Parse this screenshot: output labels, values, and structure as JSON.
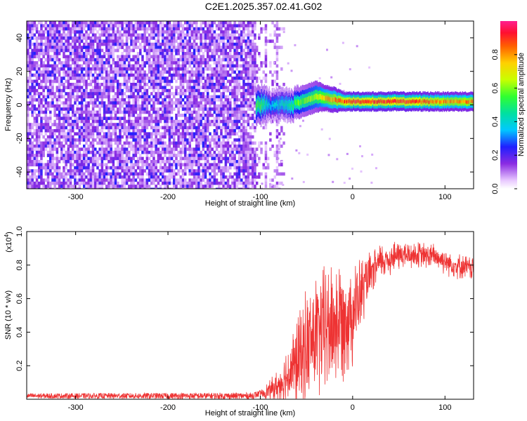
{
  "title": "C2E1.2025.357.02.41.G02",
  "chart_data": [
    {
      "type": "heatmap",
      "name": "spectrogram",
      "xlabel": "Height of straight line (km)",
      "ylabel": "Frequency (Hz)",
      "xlim": [
        -353,
        131
      ],
      "ylim": [
        -50,
        50
      ],
      "xticks": [
        -300,
        -200,
        -100,
        0,
        100
      ],
      "yticks": [
        -40,
        -20,
        0,
        20,
        40
      ],
      "noise_region_x": [
        -353,
        -105
      ],
      "noise_sparse_x": [
        -105,
        -75
      ],
      "signal_start_x": -105,
      "signal_track": [
        {
          "x": -100,
          "f": 0,
          "amp": 0.55,
          "width": 6
        },
        {
          "x": -90,
          "f": 0,
          "amp": 0.35,
          "width": 5
        },
        {
          "x": -80,
          "f": 0,
          "amp": 0.4,
          "width": 5
        },
        {
          "x": -70,
          "f": 0,
          "amp": 0.45,
          "width": 5
        },
        {
          "x": -60,
          "f": 1,
          "amp": 0.55,
          "width": 5
        },
        {
          "x": -50,
          "f": 3,
          "amp": 0.6,
          "width": 5
        },
        {
          "x": -40,
          "f": 5,
          "amp": 0.65,
          "width": 5
        },
        {
          "x": -30,
          "f": 4,
          "amp": 0.75,
          "width": 4
        },
        {
          "x": -20,
          "f": 3,
          "amp": 0.8,
          "width": 4
        },
        {
          "x": -10,
          "f": 2,
          "amp": 0.85,
          "width": 3
        },
        {
          "x": 0,
          "f": 2,
          "amp": 0.9,
          "width": 3
        },
        {
          "x": 20,
          "f": 2,
          "amp": 0.88,
          "width": 3
        },
        {
          "x": 40,
          "f": 2,
          "amp": 0.9,
          "width": 3
        },
        {
          "x": 60,
          "f": 2,
          "amp": 0.88,
          "width": 3
        },
        {
          "x": 80,
          "f": 2,
          "amp": 0.85,
          "width": 3
        },
        {
          "x": 100,
          "f": 2,
          "amp": 0.8,
          "width": 3
        },
        {
          "x": 131,
          "f": 2,
          "amp": 0.8,
          "width": 3
        }
      ]
    },
    {
      "type": "colorbar",
      "name": "colorbar",
      "label": "Normalized spectral amplitude",
      "range": [
        0.0,
        1.0
      ],
      "ticks": [
        0.0,
        0.2,
        0.4,
        0.6,
        0.8
      ],
      "tick_labels": [
        "0.0",
        "0.2",
        "0.4",
        "0.6",
        "0.8"
      ]
    },
    {
      "type": "line",
      "name": "snr",
      "xlabel": "Height of straight line (km)",
      "ylabel": "SNR (10 * v/v)",
      "yexponent_label": "(x10",
      "yexponent_power": "4",
      "yexponent_close": ")",
      "xlim": [
        -353,
        131
      ],
      "ylim": [
        0,
        1.0
      ],
      "xticks": [
        -300,
        -200,
        -100,
        0,
        100
      ],
      "yticks": [
        0.2,
        0.4,
        0.6,
        0.8,
        1.0
      ],
      "ytick_labels": [
        "0.2",
        "0.4",
        "0.6",
        "0.8",
        "1.0"
      ],
      "color": "#ee3333",
      "baseline": 0.02,
      "trend": [
        {
          "x": -353,
          "y": 0.02
        },
        {
          "x": -110,
          "y": 0.02
        },
        {
          "x": -95,
          "y": 0.04
        },
        {
          "x": -80,
          "y": 0.08
        },
        {
          "x": -60,
          "y": 0.22
        },
        {
          "x": -40,
          "y": 0.38
        },
        {
          "x": -20,
          "y": 0.45
        },
        {
          "x": 0,
          "y": 0.52
        },
        {
          "x": 15,
          "y": 0.7
        },
        {
          "x": 30,
          "y": 0.82
        },
        {
          "x": 50,
          "y": 0.86
        },
        {
          "x": 70,
          "y": 0.86
        },
        {
          "x": 90,
          "y": 0.85
        },
        {
          "x": 110,
          "y": 0.8
        },
        {
          "x": 131,
          "y": 0.78
        }
      ],
      "noise_amp": [
        {
          "x": -353,
          "a": 0.015
        },
        {
          "x": -100,
          "a": 0.02
        },
        {
          "x": -80,
          "a": 0.1
        },
        {
          "x": -50,
          "a": 0.35
        },
        {
          "x": -20,
          "a": 0.4
        },
        {
          "x": 0,
          "a": 0.3
        },
        {
          "x": 20,
          "a": 0.12
        },
        {
          "x": 60,
          "a": 0.08
        },
        {
          "x": 131,
          "a": 0.07
        }
      ]
    }
  ]
}
